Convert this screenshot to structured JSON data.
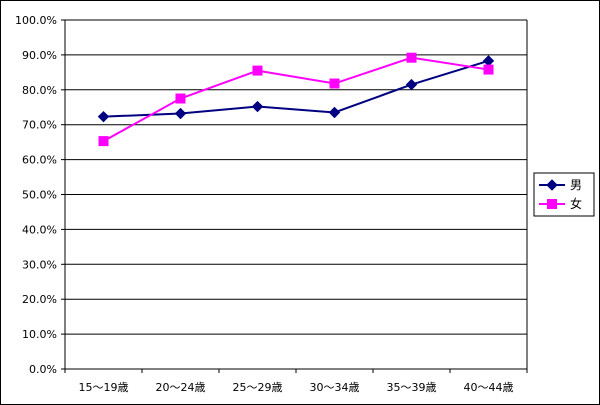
{
  "chart_data": {
    "type": "line",
    "title": "",
    "xlabel": "",
    "ylabel": "",
    "categories": [
      "15〜19歳",
      "20〜24歳",
      "25〜29歳",
      "30〜34歳",
      "35〜39歳",
      "40〜44歳"
    ],
    "yticks": [
      "0.0%",
      "10.0%",
      "20.0%",
      "30.0%",
      "40.0%",
      "50.0%",
      "60.0%",
      "70.0%",
      "80.0%",
      "90.0%",
      "100.0%"
    ],
    "ylim": [
      0,
      100
    ],
    "grid": true,
    "legend_position": "right",
    "series": [
      {
        "name": "男",
        "color": "#000080",
        "marker": "diamond",
        "values": [
          72.3,
          73.2,
          75.2,
          73.5,
          81.5,
          88.3
        ]
      },
      {
        "name": "女",
        "color": "#ff00ff",
        "marker": "square",
        "values": [
          65.3,
          77.5,
          85.5,
          81.8,
          89.2,
          85.8
        ]
      }
    ]
  }
}
